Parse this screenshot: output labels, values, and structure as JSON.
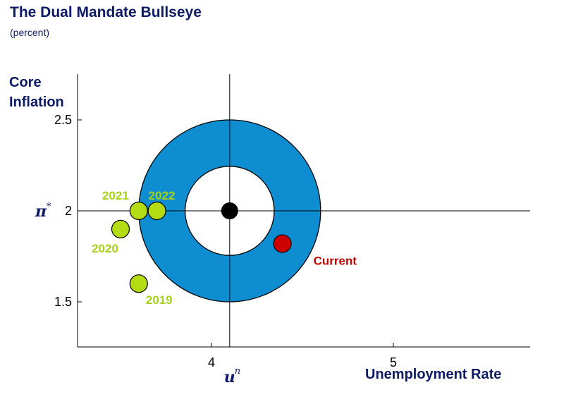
{
  "chart_data": {
    "type": "scatter",
    "title": "The Dual Mandate Bullseye",
    "subtitle": "(percent)",
    "ylabel": "Core Inflation",
    "xlabel": "Unemployment Rate",
    "x_ticks": [
      {
        "value": 4,
        "label": "4"
      },
      {
        "value": 5,
        "label": "5"
      }
    ],
    "y_ticks": [
      {
        "value": 2.5,
        "label": "2.5"
      },
      {
        "value": 2,
        "label": "2"
      },
      {
        "value": 1.5,
        "label": "1.5"
      }
    ],
    "xlim": [
      3.25,
      5.75
    ],
    "ylim": [
      1.27,
      2.75
    ],
    "target": {
      "x": 4.1,
      "y": 2.0,
      "x_label": "u",
      "x_label_sup": "n",
      "y_label": "π",
      "y_label_sup": "*"
    },
    "bands": {
      "inner_radius": 0.245,
      "outer_radius": 0.5,
      "inner_color": "#ffffff",
      "outer_color": "#0e8ed0"
    },
    "points": [
      {
        "name": "2019",
        "x": 3.6,
        "y": 1.6,
        "color": "#b4dc14",
        "label_color": "#a6d11a"
      },
      {
        "name": "2020",
        "x": 3.5,
        "y": 1.9,
        "color": "#b4dc14",
        "label_color": "#a6d11a"
      },
      {
        "name": "2021",
        "x": 3.6,
        "y": 2.0,
        "color": "#b4dc14",
        "label_color": "#a6d11a"
      },
      {
        "name": "2022",
        "x": 3.7,
        "y": 2.0,
        "color": "#b4dc14",
        "label_color": "#a6d11a"
      },
      {
        "name": "Current",
        "x": 4.39,
        "y": 1.82,
        "color": "#cc0000",
        "label_color": "#c00000"
      }
    ],
    "grid": false,
    "legend": "none"
  }
}
